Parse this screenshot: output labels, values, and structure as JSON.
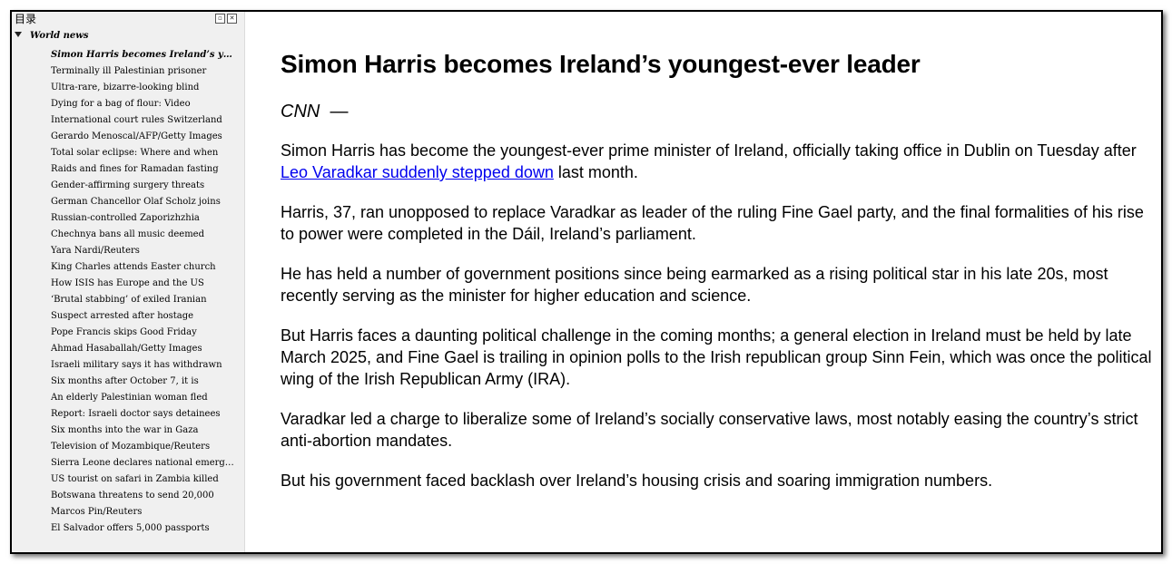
{
  "sidebar": {
    "title": "目录",
    "restore_icon": "restore-icon",
    "close_icon": "close-icon",
    "folder": "World news",
    "items": [
      "Simon Harris becomes Ireland’s youngest-ever leader",
      "Terminally ill Palestinian prisoner",
      "Ultra-rare, bizarre-looking blind",
      "Dying for a bag of flour: Video",
      "International court rules Switzerland",
      "Gerardo Menoscal/AFP/Getty Images",
      "Total solar eclipse: Where and when",
      "Raids and fines for Ramadan fasting",
      "Gender-affirming surgery threats",
      "German Chancellor Olaf Scholz joins",
      "Russian-controlled Zaporizhzhia",
      "Chechnya bans all music deemed",
      "Yara Nardi/Reuters",
      "King Charles attends Easter church",
      "How ISIS has Europe and the US",
      "‘Brutal stabbing’ of exiled Iranian",
      "Suspect arrested after hostage",
      "Pope Francis skips Good Friday",
      "Ahmad Hasaballah/Getty Images",
      "Israeli military says it has withdrawn",
      "Six months after October 7, it is",
      "An elderly Palestinian woman fled",
      "Report: Israeli doctor says detainees",
      "Six months into the war in Gaza",
      "Television of Mozambique/Reuters",
      "Sierra Leone declares national emergency",
      "US tourist on safari in Zambia killed",
      "Botswana threatens to send 20,000",
      "Marcos Pin/Reuters",
      "El Salvador offers 5,000 passports"
    ]
  },
  "article": {
    "title": "Simon Harris becomes Ireland’s youngest-ever leader",
    "source": "CNN",
    "dash": "—",
    "p1_before": "Simon Harris has become the youngest-ever prime minister of Ireland, officially taking office in Dublin on Tuesday after ",
    "p1_link": "Leo Varadkar suddenly stepped down",
    "p1_after": " last month.",
    "p2": "Harris, 37, ran unopposed to replace Varadkar as leader of the ruling Fine Gael party, and the final formalities of his rise to power were completed in the Dáil, Ireland’s parliament.",
    "p3": "He has held a number of government positions since being earmarked as a rising political star in his late 20s, most recently serving as the minister for higher education and science.",
    "p4": "But Harris faces a daunting political challenge in the coming months; a general election in Ireland must be held by late March 2025, and Fine Gael is trailing in opinion polls to the Irish republican group Sinn Fein, which was once the political wing of the Irish Republican Army (IRA).",
    "p5": "Varadkar led a charge to liberalize some of Ireland’s socially conservative laws, most notably easing the country’s strict anti-abortion mandates.",
    "p6": "But his government faced backlash over Ireland’s housing crisis and soaring immigration numbers."
  }
}
